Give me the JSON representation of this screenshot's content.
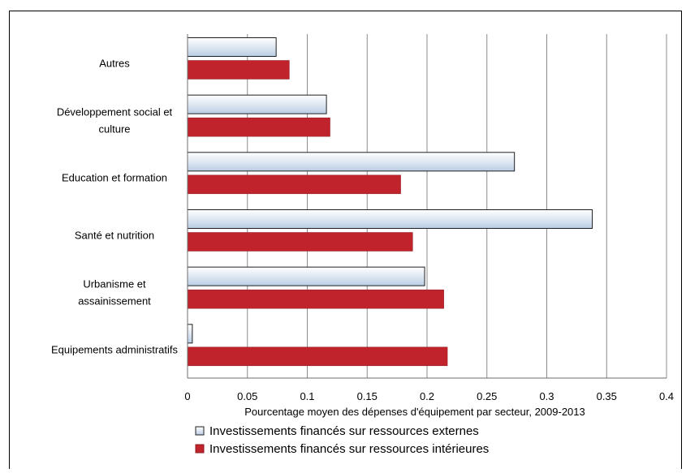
{
  "chart_data": {
    "type": "bar",
    "orientation": "horizontal",
    "categories": [
      [
        "Autres"
      ],
      [
        "Développement social et",
        "culture"
      ],
      [
        "Education et formation"
      ],
      [
        "Santé et nutrition"
      ],
      [
        "Urbanisme et",
        "assainissement"
      ],
      [
        "Equipements administratifs"
      ]
    ],
    "series": [
      {
        "name": "Investissements financés sur ressources externes",
        "values": [
          0.074,
          0.116,
          0.273,
          0.338,
          0.198,
          0.004
        ],
        "color": "#dbe5f1",
        "style": "gradient"
      },
      {
        "name": "Investissements financés sur ressources intérieures",
        "values": [
          0.085,
          0.119,
          0.178,
          0.188,
          0.214,
          0.217
        ],
        "color": "#c0232b",
        "style": "solid"
      }
    ],
    "xlabel": "Pourcentage moyen des dépenses d'équipement par secteur, 2009-2013",
    "ylabel": "",
    "title": "",
    "xlim": [
      0,
      0.4
    ],
    "xticks": [
      "0",
      "0.05",
      "0.1",
      "0.15",
      "0.2",
      "0.25",
      "0.3",
      "0.35",
      "0.4"
    ],
    "grid": "vertical",
    "legend_position": "bottom"
  }
}
